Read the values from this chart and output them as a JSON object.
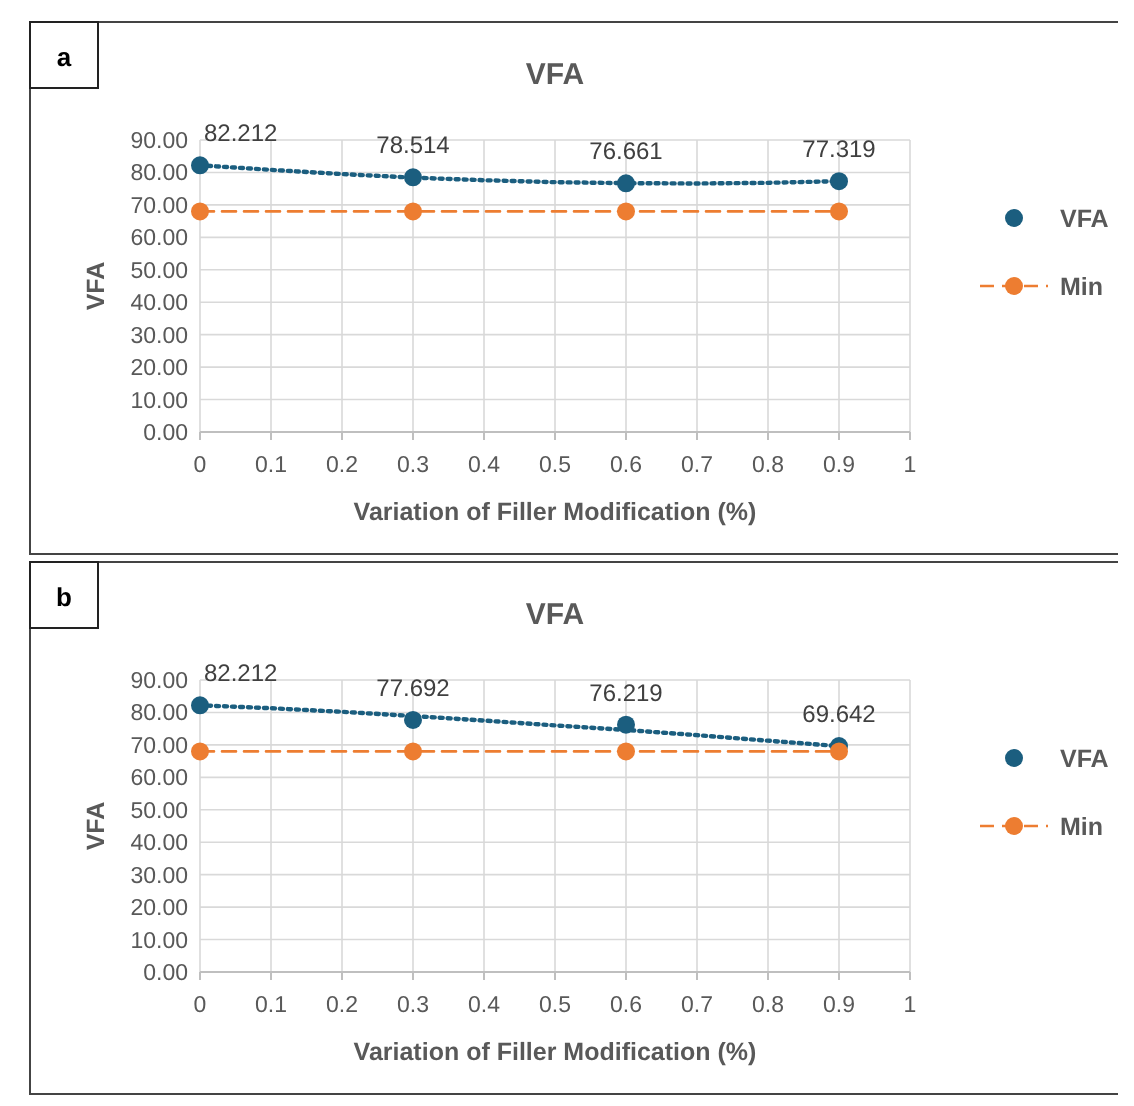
{
  "chart_data": [
    {
      "type": "scatter",
      "title": "VFA",
      "xlabel": "Variation of Filler Modification (%)",
      "ylabel": "VFA",
      "annotations": [
        "a"
      ],
      "xlim": [
        0,
        1
      ],
      "xticks": [
        0,
        0.1,
        0.2,
        0.3,
        0.4,
        0.5,
        0.6,
        0.7,
        0.8,
        0.9,
        1
      ],
      "ylim": [
        0,
        90
      ],
      "yticks": [
        {
          "value": 0,
          "label": "0.00"
        },
        {
          "value": 10,
          "label": "10.00"
        },
        {
          "value": 20,
          "label": "20.00"
        },
        {
          "value": 30,
          "label": "30.00"
        },
        {
          "value": 40,
          "label": "40.00"
        },
        {
          "value": 50,
          "label": "50.00"
        },
        {
          "value": 60,
          "label": "60.00"
        },
        {
          "value": 70,
          "label": "70.00"
        },
        {
          "value": 80,
          "label": "80.00"
        },
        {
          "value": 90,
          "label": "90.00"
        }
      ],
      "grid": true,
      "legend": "right",
      "x": [
        0,
        0.3,
        0.6,
        0.9
      ],
      "series": [
        {
          "type": "line",
          "color": "#1b5e7f",
          "line_style": "dotted",
          "marker": "none",
          "x": [
            0,
            0.1,
            0.2,
            0.3,
            0.4,
            0.5,
            0.6,
            0.7,
            0.8,
            0.9
          ],
          "values": [
            82.2,
            80.8,
            79.5,
            78.4,
            77.6,
            77.0,
            76.7,
            76.6,
            76.8,
            77.3
          ]
        },
        {
          "name": "VFA",
          "color": "#1b5e7f",
          "marker": "circle",
          "values": [
            82.212,
            78.514,
            76.661,
            77.319
          ],
          "value_labels": [
            "82.212",
            "78.514",
            "76.661",
            "77.319"
          ]
        },
        {
          "name": "Min",
          "type": "line",
          "color": "#ed7d31",
          "line_style": "dashed",
          "marker": "circle",
          "values": [
            68,
            68,
            68,
            68
          ]
        }
      ]
    },
    {
      "type": "scatter",
      "title": "VFA",
      "xlabel": "Variation of Filler Modification (%)",
      "ylabel": "VFA",
      "annotations": [
        "b"
      ],
      "xlim": [
        0,
        1
      ],
      "xticks": [
        0,
        0.1,
        0.2,
        0.3,
        0.4,
        0.5,
        0.6,
        0.7,
        0.8,
        0.9,
        1
      ],
      "ylim": [
        0,
        90
      ],
      "yticks": [
        {
          "value": 0,
          "label": "0.00"
        },
        {
          "value": 10,
          "label": "10.00"
        },
        {
          "value": 20,
          "label": "20.00"
        },
        {
          "value": 30,
          "label": "30.00"
        },
        {
          "value": 40,
          "label": "40.00"
        },
        {
          "value": 50,
          "label": "50.00"
        },
        {
          "value": 60,
          "label": "60.00"
        },
        {
          "value": 70,
          "label": "70.00"
        },
        {
          "value": 80,
          "label": "80.00"
        },
        {
          "value": 90,
          "label": "90.00"
        }
      ],
      "grid": true,
      "legend": "right",
      "x": [
        0,
        0.3,
        0.6,
        0.9
      ],
      "series": [
        {
          "type": "line",
          "color": "#1b5e7f",
          "line_style": "dotted",
          "marker": "none",
          "x": [
            0,
            0.1,
            0.2,
            0.3,
            0.4,
            0.5,
            0.6,
            0.7,
            0.8,
            0.9
          ],
          "values": [
            82.2,
            81.3,
            80.2,
            78.9,
            77.5,
            76.0,
            74.6,
            73.0,
            71.3,
            69.6
          ]
        },
        {
          "name": "VFA",
          "color": "#1b5e7f",
          "marker": "circle",
          "values": [
            82.212,
            77.692,
            76.219,
            69.642
          ],
          "value_labels": [
            "82.212",
            "77.692",
            "76.219",
            "69.642"
          ]
        },
        {
          "name": "Min",
          "type": "line",
          "color": "#ed7d31",
          "line_style": "dashed",
          "marker": "circle",
          "values": [
            68,
            68,
            68,
            68
          ]
        }
      ]
    }
  ]
}
